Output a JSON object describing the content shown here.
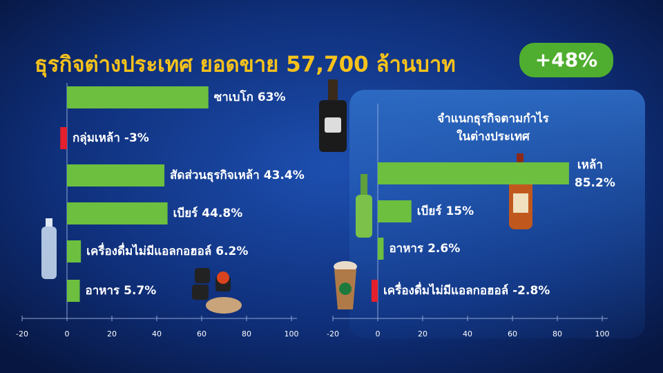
{
  "chart_data": [
    {
      "type": "bar",
      "orientation": "horizontal",
      "title": "ธุรกิจต่างประเทศ ยอดขาย 57,700 ล้านบาท",
      "annotation": "+48%",
      "categories": [
        "ซาเบโก",
        "กลุ่มเหล้า",
        "สัดส่วนธุรกิจเหล้า",
        "เบียร์",
        "เครื่องดื่มไม่มีแอลกอฮอล์",
        "อาหาร"
      ],
      "values": [
        63,
        -3,
        43.4,
        44.8,
        6.2,
        5.7
      ],
      "value_labels": [
        "63%",
        "-3%",
        "43.4%",
        "44.8%",
        "6.2%",
        "5.7%"
      ],
      "color": "#6cbf3f",
      "negative_color": "#e3202c",
      "xlim": [
        -20,
        100
      ],
      "xticks": [
        -20,
        0,
        20,
        40,
        60,
        80,
        100
      ]
    },
    {
      "type": "bar",
      "orientation": "horizontal",
      "title": [
        "จำแนกธุรกิจตามกำไร",
        "ในต่างประเทศ"
      ],
      "categories": [
        "เหล้า",
        "เบียร์",
        "อาหาร",
        "เครื่องดื่มไม่มีแอลกอฮอล์"
      ],
      "values": [
        85.2,
        15,
        2.6,
        -2.8
      ],
      "value_labels": [
        "85.2%",
        "15%",
        "2.6%",
        "-2.8%"
      ],
      "color": "#6cbf3f",
      "negative_color": "#e3202c",
      "xlim": [
        -20,
        100
      ],
      "xticks": [
        -20,
        0,
        20,
        40,
        60,
        80,
        100
      ]
    }
  ]
}
